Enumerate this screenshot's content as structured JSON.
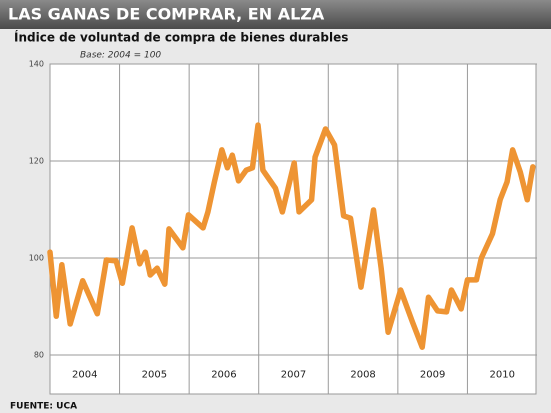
{
  "chart_data": {
    "type": "line",
    "title": "LAS GANAS DE COMPRAR, EN ALZA",
    "subtitle": "Índice de voluntad de compra de bienes durables",
    "note": "Base: 2004 = 100",
    "source": "FUENTE: UCA",
    "x": [
      2004.0,
      2004.09,
      2004.17,
      2004.29,
      2004.47,
      2004.68,
      2004.81,
      2004.95,
      2005.04,
      2005.18,
      2005.29,
      2005.37,
      2005.44,
      2005.54,
      2005.65,
      2005.71,
      2005.91,
      2005.99,
      2006.2,
      2006.27,
      2006.36,
      2006.47,
      2006.55,
      2006.62,
      2006.71,
      2006.82,
      2006.91,
      2006.99,
      2007.06,
      2007.24,
      2007.34,
      2007.51,
      2007.58,
      2007.76,
      2007.81,
      2007.96,
      2008.09,
      2008.22,
      2008.32,
      2008.47,
      2008.65,
      2008.76,
      2008.86,
      2009.04,
      2009.21,
      2009.35,
      2009.44,
      2009.57,
      2009.7,
      2009.77,
      2009.91,
      2010.0,
      2010.13,
      2010.2,
      2010.36,
      2010.47,
      2010.57,
      2010.65,
      2010.76,
      2010.86,
      2010.94
    ],
    "series": [
      {
        "name": "Índice",
        "color": "#ee9433",
        "values": [
          101.2,
          88,
          98.6,
          86.4,
          95.3,
          88.5,
          99.6,
          99.4,
          94.8,
          106.2,
          98.8,
          101.2,
          96.5,
          97.9,
          94.6,
          106,
          102.1,
          108.9,
          106.2,
          109.5,
          115.5,
          122.3,
          118.6,
          121.2,
          115.9,
          118.1,
          118.6,
          127.4,
          118.1,
          114.4,
          109.5,
          119.6,
          109.5,
          112,
          120.8,
          126.6,
          123.3,
          108.7,
          108.2,
          94,
          109.9,
          97.9,
          84.7,
          93.4,
          86.8,
          81.6,
          91.9,
          89.1,
          88.9,
          93.4,
          89.5,
          95.5,
          95.5,
          100,
          105,
          112,
          115.7,
          122.3,
          117.7,
          112,
          118.8
        ]
      }
    ],
    "xlim": [
      2004,
      2011
    ],
    "xticks": [
      2004,
      2005,
      2006,
      2007,
      2008,
      2009,
      2010
    ],
    "ylim": [
      80,
      140
    ],
    "yticks": [
      80,
      100,
      120,
      140
    ],
    "grid": true
  }
}
